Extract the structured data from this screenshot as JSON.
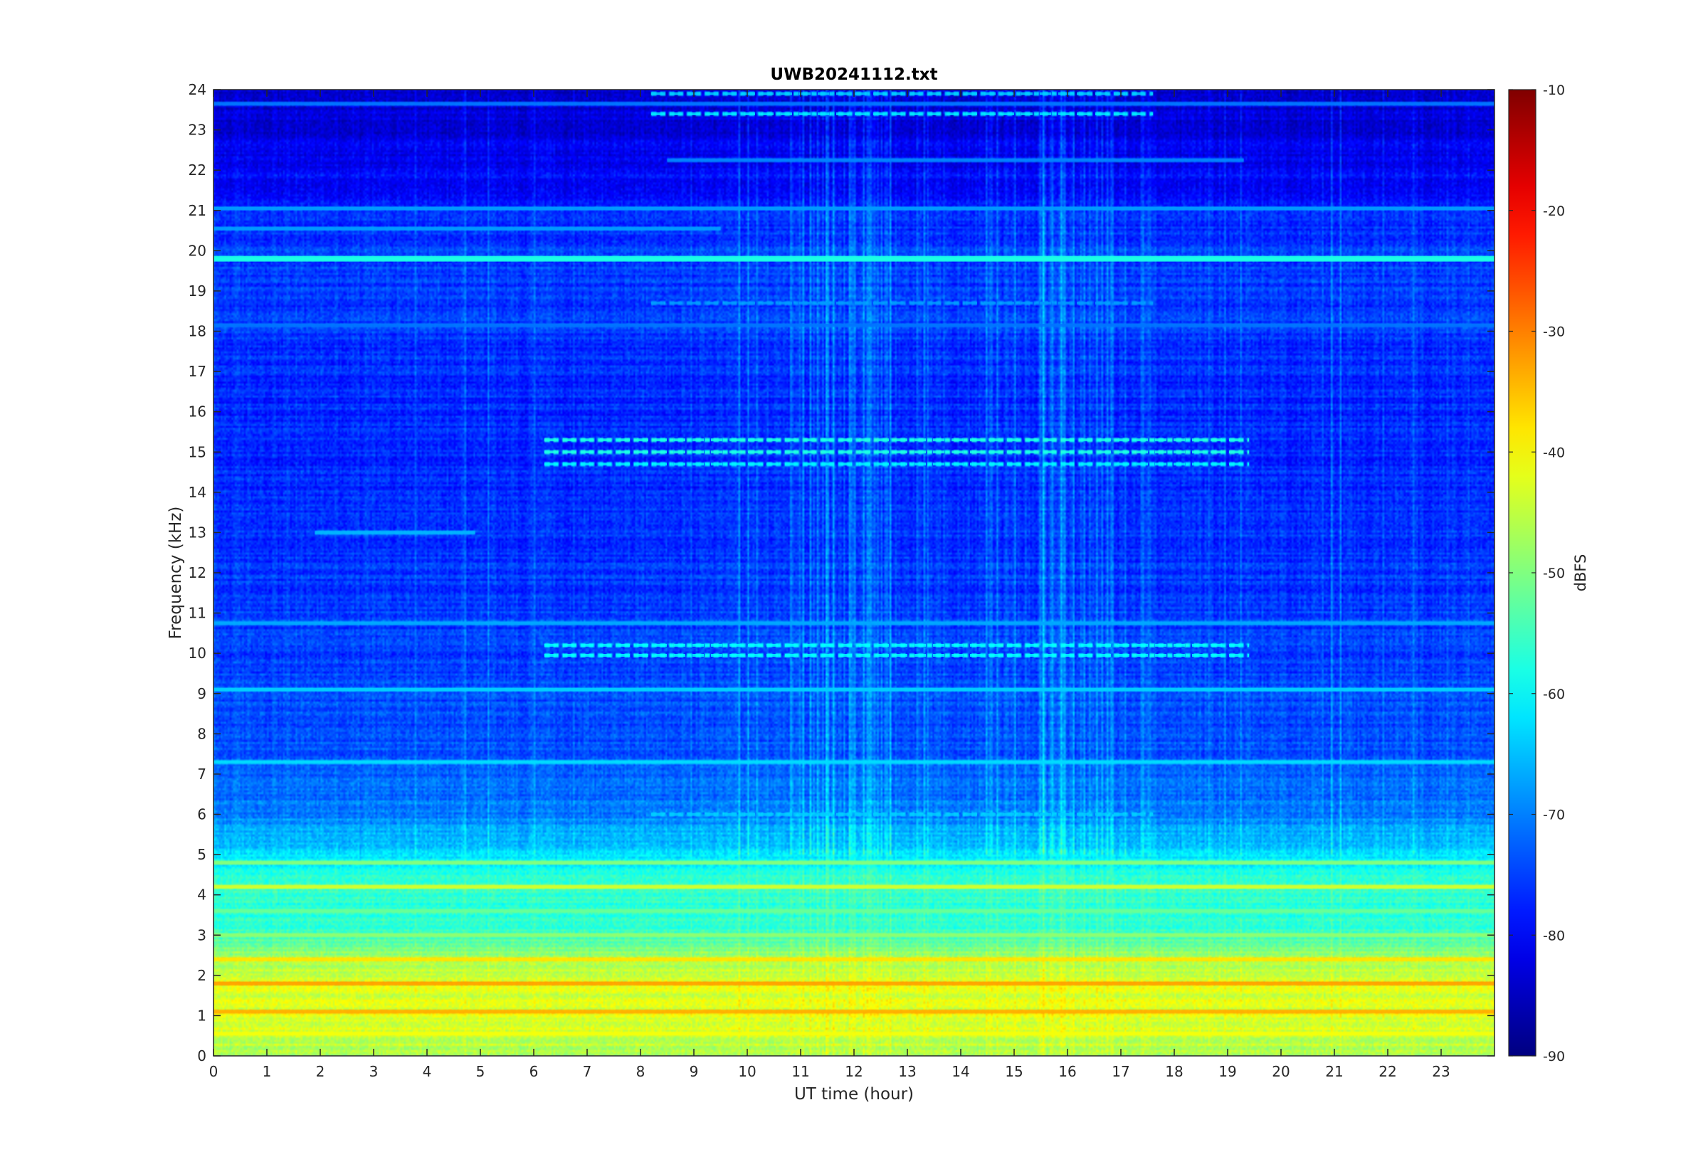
{
  "chart_data": {
    "type": "heatmap",
    "title": "UWB20241112.txt",
    "xlabel": "UT time (hour)",
    "ylabel": "Frequency (kHz)",
    "xlim": [
      0,
      24
    ],
    "ylim": [
      0,
      24
    ],
    "x_ticks": [
      0,
      1,
      2,
      3,
      4,
      5,
      6,
      7,
      8,
      9,
      10,
      11,
      12,
      13,
      14,
      15,
      16,
      17,
      18,
      19,
      20,
      21,
      22,
      23
    ],
    "y_ticks": [
      0,
      1,
      2,
      3,
      4,
      5,
      6,
      7,
      8,
      9,
      10,
      11,
      12,
      13,
      14,
      15,
      16,
      17,
      18,
      19,
      20,
      21,
      22,
      23,
      24
    ],
    "colormap": "jet",
    "colorbar": {
      "label": "dBFS",
      "limits": [
        -90,
        -10
      ],
      "ticks": [
        -10,
        -20,
        -30,
        -40,
        -50,
        -60,
        -70,
        -80,
        -90
      ]
    },
    "grid": false,
    "level_profile": {
      "frequency_khz": [
        0,
        0.5,
        1,
        1.5,
        2,
        2.5,
        3,
        3.5,
        4,
        4.5,
        5,
        5.5,
        6,
        7,
        8,
        9,
        10,
        12,
        14,
        16,
        18,
        19.5,
        20,
        21,
        22,
        23,
        24
      ],
      "dbfs": [
        -46,
        -44,
        -42,
        -43,
        -44,
        -48,
        -55,
        -57,
        -56,
        -58,
        -62,
        -66,
        -70,
        -72,
        -74,
        -74,
        -75,
        -76,
        -77,
        -77,
        -76,
        -75,
        -75,
        -78,
        -80,
        -83,
        -84
      ]
    },
    "horizontal_lines": [
      {
        "freq_khz": 19.8,
        "t_start": 0,
        "t_end": 24,
        "dbfs": -58
      },
      {
        "freq_khz": 21.05,
        "t_start": 0,
        "t_end": 24,
        "dbfs": -68
      },
      {
        "freq_khz": 18.15,
        "t_start": 0,
        "t_end": 24,
        "dbfs": -71
      },
      {
        "freq_khz": 22.25,
        "t_start": 8.5,
        "t_end": 19.3,
        "dbfs": -70
      },
      {
        "freq_khz": 4.2,
        "t_start": 0,
        "t_end": 24,
        "dbfs": -44
      },
      {
        "freq_khz": 4.8,
        "t_start": 0,
        "t_end": 24,
        "dbfs": -50
      },
      {
        "freq_khz": 3.6,
        "t_start": 0,
        "t_end": 24,
        "dbfs": -52
      },
      {
        "freq_khz": 3.0,
        "t_start": 0,
        "t_end": 24,
        "dbfs": -49
      },
      {
        "freq_khz": 2.4,
        "t_start": 0,
        "t_end": 24,
        "dbfs": -38
      },
      {
        "freq_khz": 1.8,
        "t_start": 0,
        "t_end": 24,
        "dbfs": -33
      },
      {
        "freq_khz": 1.1,
        "t_start": 0,
        "t_end": 24,
        "dbfs": -34
      },
      {
        "freq_khz": 0.55,
        "t_start": 0,
        "t_end": 24,
        "dbfs": -41
      },
      {
        "freq_khz": 9.1,
        "t_start": 0,
        "t_end": 24,
        "dbfs": -64
      },
      {
        "freq_khz": 7.3,
        "t_start": 0,
        "t_end": 24,
        "dbfs": -63
      },
      {
        "freq_khz": 10.75,
        "t_start": 0,
        "t_end": 24,
        "dbfs": -67
      },
      {
        "freq_khz": 20.55,
        "t_start": 0,
        "t_end": 9.5,
        "dbfs": -68
      },
      {
        "freq_khz": 23.65,
        "t_start": 0,
        "t_end": 24,
        "dbfs": -71
      },
      {
        "freq_khz": 13.0,
        "t_start": 1.9,
        "t_end": 4.9,
        "dbfs": -66
      }
    ],
    "dashed_bands": [
      {
        "freq_khz": 15.3,
        "t_start": 6.2,
        "t_end": 19.4,
        "dbfs": -58
      },
      {
        "freq_khz": 15.0,
        "t_start": 6.2,
        "t_end": 19.4,
        "dbfs": -58
      },
      {
        "freq_khz": 14.7,
        "t_start": 6.2,
        "t_end": 19.4,
        "dbfs": -61
      },
      {
        "freq_khz": 10.2,
        "t_start": 6.2,
        "t_end": 19.4,
        "dbfs": -60
      },
      {
        "freq_khz": 9.95,
        "t_start": 6.2,
        "t_end": 19.4,
        "dbfs": -60
      },
      {
        "freq_khz": 23.4,
        "t_start": 8.2,
        "t_end": 17.6,
        "dbfs": -62
      },
      {
        "freq_khz": 23.9,
        "t_start": 8.2,
        "t_end": 17.6,
        "dbfs": -64
      },
      {
        "freq_khz": 6.0,
        "t_start": 8.2,
        "t_end": 17.6,
        "dbfs": -64
      },
      {
        "freq_khz": 18.7,
        "t_start": 8.2,
        "t_end": 17.6,
        "dbfs": -68
      }
    ],
    "vertical_streaks": [
      {
        "t_start": 9.2,
        "t_end": 17.6,
        "dbfs_boost": 7
      },
      {
        "t_start": 11.4,
        "t_end": 11.7,
        "dbfs_boost": 9
      },
      {
        "t_start": 15.4,
        "t_end": 16.2,
        "dbfs_boost": 8
      }
    ]
  }
}
